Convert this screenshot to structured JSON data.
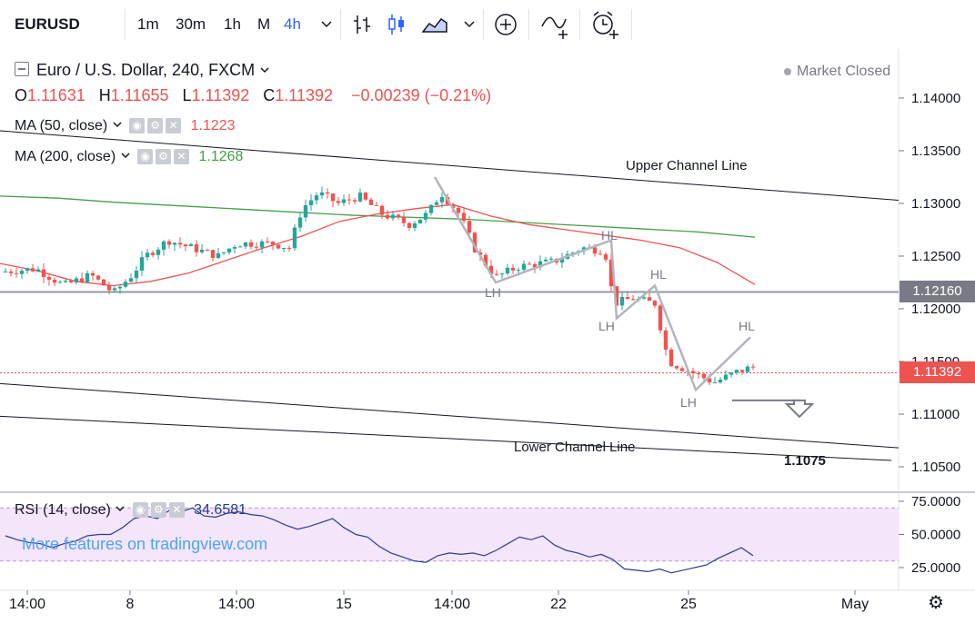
{
  "toolbar": {
    "symbol": "EURUSD",
    "intervals": [
      "1m",
      "30m",
      "1h",
      "M",
      "4h"
    ],
    "active_interval": "4h",
    "icons": [
      "chevron-down-icon",
      "bar-chart-icon",
      "candles-icon",
      "area-chart-icon",
      "chevron-down-icon",
      "add-indicator-icon",
      "compare-icon",
      "alarm-icon"
    ]
  },
  "legend": {
    "title": "Euro / U.S. Dollar, 240, FXCM",
    "ohlc": [
      {
        "k": "O",
        "v": "1.11631"
      },
      {
        "k": "H",
        "v": "1.11655"
      },
      {
        "k": "L",
        "v": "1.11392"
      },
      {
        "k": "C",
        "v": "1.11392"
      }
    ],
    "change": "−0.00239 (−0.21%)",
    "market_status": "Market Closed"
  },
  "indicators": [
    {
      "label": "MA (50, close)",
      "value": "1.1223",
      "color": "#ef5350"
    },
    {
      "label": "MA (200, close)",
      "value": "1.1268",
      "color": "#43a047"
    }
  ],
  "rsi": {
    "label": "RSI (14, close)",
    "value": "34.6581",
    "color": "#2d3b8e"
  },
  "watermark": "More features on tradingview.com",
  "price_tags": [
    {
      "label": "1.12160",
      "value": 1.1216,
      "color": "#787b86"
    },
    {
      "label": "1.11392",
      "value": 1.11392,
      "color": "#ef5350"
    }
  ],
  "chart_data": {
    "type": "candlestick",
    "x_tick_labels": [
      "14:00",
      "8",
      "14:00",
      "15",
      "14:00",
      "22",
      "25",
      "May"
    ],
    "y_tick_labels": [
      "1.14000",
      "1.13500",
      "1.13000",
      "1.12500",
      "1.12000",
      "1.11500",
      "1.11000",
      "1.10500"
    ],
    "ylim": [
      1.1025,
      1.1425
    ],
    "horizontal_line": 1.1216,
    "ma50": [
      1.1243,
      1.1236,
      1.1226,
      1.1222,
      1.1226,
      1.1234,
      1.1246,
      1.1258,
      1.1269,
      1.1283,
      1.129,
      1.1295,
      1.1299,
      1.1288,
      1.128,
      1.1275,
      1.127,
      1.1265,
      1.1258,
      1.1244,
      1.1223
    ],
    "ma200": [
      1.1307,
      1.1305,
      1.1301,
      1.1298,
      1.1295,
      1.1292,
      1.1289,
      1.1287,
      1.1285,
      1.1282,
      1.1279,
      1.1276,
      1.1273,
      1.1268
    ],
    "rsi_values": [
      49,
      46,
      44,
      43,
      40,
      43,
      45,
      49,
      50,
      50,
      55,
      62,
      64,
      62,
      68,
      67,
      70,
      64,
      63,
      66,
      67,
      65,
      64,
      61,
      57,
      54,
      56,
      59,
      62,
      55,
      50,
      48,
      41,
      36,
      33,
      30,
      29,
      34,
      36,
      35,
      36,
      34,
      38,
      43,
      48,
      46,
      49,
      42,
      38,
      36,
      33,
      35,
      31,
      24,
      23,
      22,
      24,
      21,
      23,
      25,
      27,
      32,
      36,
      40,
      34
    ],
    "rsi_ylim": [
      15,
      80
    ],
    "rsi_tick_labels": [
      "75.0000",
      "50.0000",
      "25.0000"
    ],
    "annotations": [
      {
        "text": "Upper Channel Line"
      },
      {
        "text": "Lower Channel Line"
      },
      {
        "text": "1.1075",
        "value": 1.1075
      },
      {
        "text": "LH"
      },
      {
        "text": "HL"
      },
      {
        "text": "LH"
      },
      {
        "text": "HL"
      },
      {
        "text": "LH"
      },
      {
        "text": "HL"
      }
    ],
    "zigzag": [
      [
        1.1325,
        1.1225
      ],
      [
        1.1225,
        1.1265
      ],
      [
        1.1265,
        1.1191
      ],
      [
        1.1191,
        1.1222
      ],
      [
        1.1222,
        1.1123
      ],
      [
        1.1123,
        1.1173
      ]
    ],
    "target_arrow": {
      "from": 1.1113,
      "to": 1.1075
    }
  }
}
